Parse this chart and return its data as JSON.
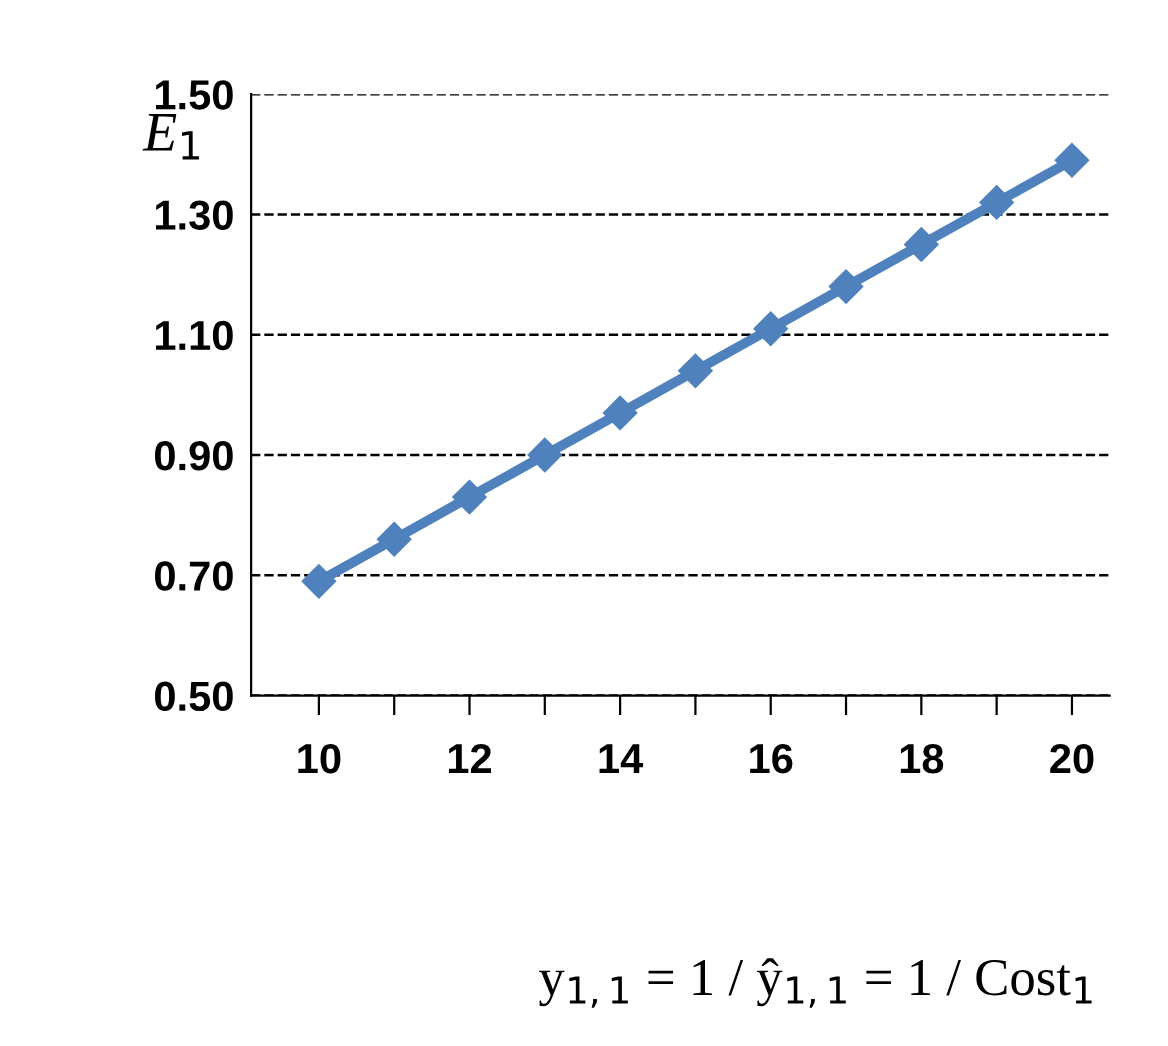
{
  "chart_data": {
    "type": "line",
    "xlabel": "y$_{1,1}$ = 1 / ŷ$_{1,1}$ = 1 / Cost$_{1}$",
    "ylabel": "E$_{1}$",
    "x": [
      10,
      11,
      12,
      13,
      14,
      15,
      16,
      17,
      18,
      19,
      20
    ],
    "series": [
      {
        "color": "#4f81bd",
        "values": [
          0.69,
          0.76,
          0.83,
          0.9,
          0.97,
          1.04,
          1.11,
          1.18,
          1.25,
          1.32,
          1.39
        ]
      }
    ],
    "xlim": [
      9.1,
      20.5
    ],
    "ylim": [
      0.5,
      1.5
    ],
    "xticks": [
      10,
      {
        "value": 11,
        "label": null
      },
      12,
      {
        "value": 13,
        "label": null
      },
      14,
      {
        "value": 15,
        "label": null
      },
      16,
      {
        "value": 17,
        "label": null
      },
      18,
      {
        "value": 19,
        "label": null
      },
      20
    ],
    "yticks": [
      {
        "value": 0.5,
        "label": "0.50"
      },
      {
        "value": 0.7,
        "label": "0.70"
      },
      {
        "value": 0.9,
        "label": "0.90"
      },
      {
        "value": 1.1,
        "label": "1.10"
      },
      {
        "value": 1.3,
        "label": "1.30"
      },
      {
        "value": 1.5,
        "label": "1.50"
      }
    ],
    "grid": "y",
    "marker": "diamond",
    "line_style": "solid",
    "legend": false
  }
}
